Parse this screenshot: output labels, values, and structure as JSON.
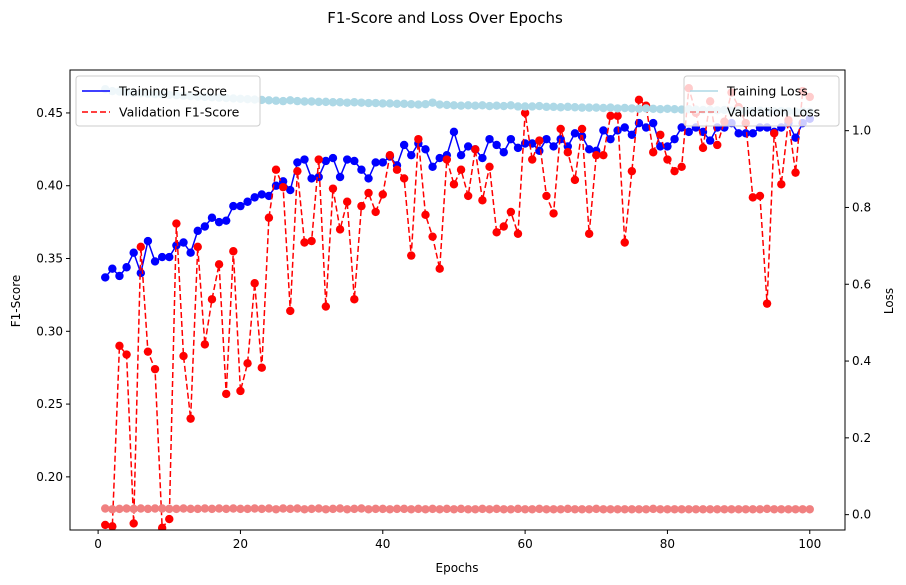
{
  "chart_data": {
    "type": "line",
    "title": "F1-Score and Loss Over Epochs",
    "xlabel": "Epochs",
    "ylabel_left": "F1-Score",
    "ylabel_right": "Loss",
    "xlim": [
      -3.95,
      104.95
    ],
    "ylim_left": [
      0.1635,
      0.4795
    ],
    "ylim_right": [
      -0.04,
      1.158
    ],
    "xticks": [
      0,
      20,
      40,
      60,
      80,
      100
    ],
    "yticks_left": [
      0.2,
      0.25,
      0.3,
      0.35,
      0.4,
      0.45
    ],
    "yticks_right": [
      0.0,
      0.2,
      0.4,
      0.6,
      0.8,
      1.0
    ],
    "ytick_labels_left": [
      "0.20",
      "0.25",
      "0.30",
      "0.35",
      "0.40",
      "0.45"
    ],
    "ytick_labels_right": [
      "0.0",
      "0.2",
      "0.4",
      "0.6",
      "0.8",
      "1.0"
    ],
    "grid": false,
    "legend_left": {
      "position": "upper-left",
      "entries": [
        "Training F1-Score",
        "Validation F1-Score"
      ]
    },
    "legend_right": {
      "position": "upper-right",
      "entries": [
        "Training Loss",
        "Validation Loss"
      ]
    },
    "series": [
      {
        "name": "Training F1-Score",
        "axis": "left",
        "color": "#0000ff",
        "style": "solid-markers",
        "x": [
          1,
          2,
          3,
          4,
          5,
          6,
          7,
          8,
          9,
          10,
          11,
          12,
          13,
          14,
          15,
          16,
          17,
          18,
          19,
          20,
          21,
          22,
          23,
          24,
          25,
          26,
          27,
          28,
          29,
          30,
          31,
          32,
          33,
          34,
          35,
          36,
          37,
          38,
          39,
          40,
          41,
          42,
          43,
          44,
          45,
          46,
          47,
          48,
          49,
          50,
          51,
          52,
          53,
          54,
          55,
          56,
          57,
          58,
          59,
          60,
          61,
          62,
          63,
          64,
          65,
          66,
          67,
          68,
          69,
          70,
          71,
          72,
          73,
          74,
          75,
          76,
          77,
          78,
          79,
          80,
          81,
          82,
          83,
          84,
          85,
          86,
          87,
          88,
          89,
          90,
          91,
          92,
          93,
          94,
          95,
          96,
          97,
          98,
          99,
          100
        ],
        "values": [
          0.337,
          0.343,
          0.338,
          0.344,
          0.354,
          0.34,
          0.362,
          0.348,
          0.351,
          0.351,
          0.359,
          0.361,
          0.354,
          0.369,
          0.372,
          0.378,
          0.375,
          0.376,
          0.386,
          0.386,
          0.389,
          0.392,
          0.394,
          0.393,
          0.4,
          0.403,
          0.397,
          0.416,
          0.418,
          0.405,
          0.406,
          0.417,
          0.419,
          0.406,
          0.418,
          0.417,
          0.411,
          0.405,
          0.416,
          0.416,
          0.42,
          0.414,
          0.428,
          0.421,
          0.429,
          0.425,
          0.413,
          0.419,
          0.421,
          0.437,
          0.421,
          0.427,
          0.425,
          0.419,
          0.432,
          0.428,
          0.423,
          0.432,
          0.426,
          0.429,
          0.429,
          0.424,
          0.432,
          0.427,
          0.432,
          0.427,
          0.436,
          0.434,
          0.425,
          0.424,
          0.438,
          0.432,
          0.438,
          0.44,
          0.435,
          0.443,
          0.44,
          0.443,
          0.427,
          0.427,
          0.432,
          0.44,
          0.437,
          0.44,
          0.437,
          0.431,
          0.44,
          0.44,
          0.443,
          0.436,
          0.436,
          0.436,
          0.44,
          0.44,
          0.437,
          0.44,
          0.443,
          0.433,
          0.443,
          0.446
        ]
      },
      {
        "name": "Validation F1-Score",
        "axis": "left",
        "color": "#ff0000",
        "style": "dashed-markers",
        "x": [
          1,
          2,
          3,
          4,
          5,
          6,
          7,
          8,
          9,
          10,
          11,
          12,
          13,
          14,
          15,
          16,
          17,
          18,
          19,
          20,
          21,
          22,
          23,
          24,
          25,
          26,
          27,
          28,
          29,
          30,
          31,
          32,
          33,
          34,
          35,
          36,
          37,
          38,
          39,
          40,
          41,
          42,
          43,
          44,
          45,
          46,
          47,
          48,
          49,
          50,
          51,
          52,
          53,
          54,
          55,
          56,
          57,
          58,
          59,
          60,
          61,
          62,
          63,
          64,
          65,
          66,
          67,
          68,
          69,
          70,
          71,
          72,
          73,
          74,
          75,
          76,
          77,
          78,
          79,
          80,
          81,
          82,
          83,
          84,
          85,
          86,
          87,
          88,
          89,
          90,
          91,
          92,
          93,
          94,
          95,
          96,
          97,
          98,
          99,
          100
        ],
        "values": [
          0.167,
          0.166,
          0.29,
          0.284,
          0.168,
          0.358,
          0.286,
          0.274,
          0.165,
          0.171,
          0.374,
          0.283,
          0.24,
          0.358,
          0.291,
          0.322,
          0.346,
          0.257,
          0.355,
          0.259,
          0.278,
          0.333,
          0.275,
          0.378,
          0.411,
          0.399,
          0.314,
          0.41,
          0.361,
          0.362,
          0.418,
          0.317,
          0.398,
          0.37,
          0.389,
          0.322,
          0.386,
          0.395,
          0.382,
          0.394,
          0.421,
          0.411,
          0.405,
          0.352,
          0.432,
          0.38,
          0.365,
          0.343,
          0.418,
          0.401,
          0.411,
          0.393,
          0.425,
          0.39,
          0.413,
          0.368,
          0.372,
          0.382,
          0.367,
          0.45,
          0.418,
          0.431,
          0.393,
          0.381,
          0.439,
          0.423,
          0.404,
          0.439,
          0.367,
          0.421,
          0.421,
          0.448,
          0.448,
          0.361,
          0.41,
          0.459,
          0.455,
          0.423,
          0.435,
          0.418,
          0.41,
          0.413,
          0.467,
          0.45,
          0.426,
          0.458,
          0.428,
          0.444,
          0.464,
          0.454,
          0.443,
          0.392,
          0.393,
          0.319,
          0.436,
          0.401,
          0.445,
          0.409,
          0.465,
          0.461
        ]
      },
      {
        "name": "Training Loss",
        "axis": "right",
        "color": "#add8e6",
        "style": "solid-markers",
        "x": [
          1,
          2,
          3,
          4,
          5,
          6,
          7,
          8,
          9,
          10,
          11,
          12,
          13,
          14,
          15,
          16,
          17,
          18,
          19,
          20,
          21,
          22,
          23,
          24,
          25,
          26,
          27,
          28,
          29,
          30,
          31,
          32,
          33,
          34,
          35,
          36,
          37,
          38,
          39,
          40,
          41,
          42,
          43,
          44,
          45,
          46,
          47,
          48,
          49,
          50,
          51,
          52,
          53,
          54,
          55,
          56,
          57,
          58,
          59,
          60,
          61,
          62,
          63,
          64,
          65,
          66,
          67,
          68,
          69,
          70,
          71,
          72,
          73,
          74,
          75,
          76,
          77,
          78,
          79,
          80,
          81,
          82,
          83,
          84,
          85,
          86,
          87,
          88,
          89,
          90,
          91,
          92,
          93,
          94,
          95,
          96,
          97,
          98,
          99,
          100
        ],
        "values": [
          1.108,
          1.103,
          1.102,
          1.1,
          1.098,
          1.097,
          1.096,
          1.095,
          1.094,
          1.093,
          1.092,
          1.091,
          1.09,
          1.089,
          1.088,
          1.087,
          1.086,
          1.085,
          1.084,
          1.083,
          1.082,
          1.081,
          1.08,
          1.079,
          1.078,
          1.077,
          1.079,
          1.077,
          1.076,
          1.076,
          1.075,
          1.075,
          1.074,
          1.074,
          1.073,
          1.074,
          1.073,
          1.072,
          1.072,
          1.071,
          1.071,
          1.07,
          1.07,
          1.069,
          1.068,
          1.069,
          1.073,
          1.068,
          1.067,
          1.066,
          1.065,
          1.066,
          1.065,
          1.066,
          1.064,
          1.065,
          1.064,
          1.066,
          1.063,
          1.063,
          1.063,
          1.064,
          1.062,
          1.062,
          1.061,
          1.062,
          1.061,
          1.06,
          1.06,
          1.06,
          1.059,
          1.06,
          1.058,
          1.059,
          1.058,
          1.057,
          1.058,
          1.057,
          1.056,
          1.057,
          1.056,
          1.055,
          1.056,
          1.055,
          1.054,
          1.054,
          1.053,
          1.054,
          1.052,
          1.053,
          1.052,
          1.051,
          1.052,
          1.051,
          1.05,
          1.051,
          1.05,
          1.049,
          1.05,
          1.049
        ]
      },
      {
        "name": "Validation Loss",
        "axis": "right",
        "color": "#f08080",
        "style": "dashed-markers",
        "x": [
          1,
          2,
          3,
          4,
          5,
          6,
          7,
          8,
          9,
          10,
          11,
          12,
          13,
          14,
          15,
          16,
          17,
          18,
          19,
          20,
          21,
          22,
          23,
          24,
          25,
          26,
          27,
          28,
          29,
          30,
          31,
          32,
          33,
          34,
          35,
          36,
          37,
          38,
          39,
          40,
          41,
          42,
          43,
          44,
          45,
          46,
          47,
          48,
          49,
          50,
          51,
          52,
          53,
          54,
          55,
          56,
          57,
          58,
          59,
          60,
          61,
          62,
          63,
          64,
          65,
          66,
          67,
          68,
          69,
          70,
          71,
          72,
          73,
          74,
          75,
          76,
          77,
          78,
          79,
          80,
          81,
          82,
          83,
          84,
          85,
          86,
          87,
          88,
          89,
          90,
          91,
          92,
          93,
          94,
          95,
          96,
          97,
          98,
          99,
          100
        ],
        "values": [
          0.016,
          0.014,
          0.015,
          0.016,
          0.015,
          0.016,
          0.015,
          0.016,
          0.016,
          0.015,
          0.015,
          0.016,
          0.015,
          0.015,
          0.016,
          0.015,
          0.016,
          0.015,
          0.016,
          0.015,
          0.015,
          0.016,
          0.015,
          0.016,
          0.014,
          0.016,
          0.015,
          0.016,
          0.014,
          0.015,
          0.016,
          0.014,
          0.015,
          0.016,
          0.014,
          0.015,
          0.016,
          0.014,
          0.015,
          0.015,
          0.014,
          0.015,
          0.015,
          0.014,
          0.015,
          0.014,
          0.015,
          0.014,
          0.015,
          0.014,
          0.015,
          0.014,
          0.014,
          0.015,
          0.014,
          0.015,
          0.014,
          0.014,
          0.015,
          0.014,
          0.014,
          0.015,
          0.014,
          0.014,
          0.014,
          0.015,
          0.014,
          0.014,
          0.014,
          0.015,
          0.014,
          0.014,
          0.014,
          0.014,
          0.014,
          0.014,
          0.014,
          0.015,
          0.014,
          0.014,
          0.014,
          0.014,
          0.014,
          0.014,
          0.014,
          0.014,
          0.014,
          0.014,
          0.014,
          0.014,
          0.014,
          0.014,
          0.014,
          0.015,
          0.014,
          0.014,
          0.014,
          0.014,
          0.014,
          0.014
        ]
      }
    ]
  }
}
